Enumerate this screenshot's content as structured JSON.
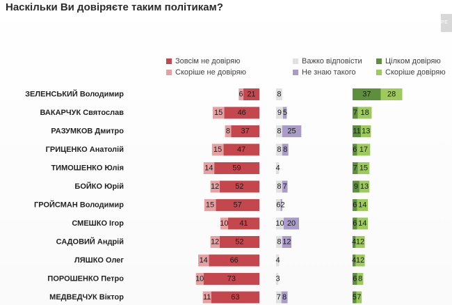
{
  "header": {
    "title": "Наскільки Ви довіряєте таким політикам?",
    "logo_text": "PE"
  },
  "colors": {
    "distrust_full": "#c4474e",
    "distrust_rather": "#e5a0a2",
    "hard_to_say": "#e0e0e0",
    "unknown": "#a99cc6",
    "trust_full": "#5d8f3d",
    "trust_rather": "#9ccb5c"
  },
  "chart_data": {
    "type": "bar",
    "title": "Наскільки Ви довіряєте таким політикам?",
    "categories": [
      "ЗЕЛЕНСЬКИЙ Володимир",
      "ВАКАРЧУК Святослав",
      "РАЗУМКОВ Дмитро",
      "ГРИЦЕНКО Анатолій",
      "ТИМОШЕНКО Юлія",
      "БОЙКО Юрій",
      "ГРОЙСМАН Володимир",
      "СМЕШКО Ігор",
      "САДОВИЙ Андрій",
      "ЛЯШКО Олег",
      "ПОРОШЕНКО Петро",
      "МЕДВЕДЧУК Віктор"
    ],
    "series": [
      {
        "name": "Зовсім не довіряю",
        "color": "#c4474e",
        "values": [
          21,
          46,
          37,
          47,
          59,
          52,
          57,
          41,
          52,
          66,
          73,
          63
        ]
      },
      {
        "name": "Скоріше не довіряю",
        "color": "#e5a0a2",
        "values": [
          6,
          15,
          8,
          15,
          14,
          12,
          15,
          10,
          12,
          14,
          10,
          11
        ]
      },
      {
        "name": "Важко відповісти",
        "color": "#e0e0e0",
        "values": [
          8,
          9,
          8,
          8,
          4,
          8,
          6,
          10,
          8,
          4,
          3,
          7
        ]
      },
      {
        "name": "Не знаю такого",
        "color": "#a99cc6",
        "values": [
          0,
          5,
          25,
          8,
          0,
          7,
          2,
          20,
          12,
          0,
          0,
          8
        ]
      },
      {
        "name": "Цілком довіряю",
        "color": "#5d8f3d",
        "values": [
          37,
          7,
          11,
          6,
          7,
          9,
          6,
          6,
          4,
          4,
          6,
          5
        ]
      },
      {
        "name": "Скоріше довіряю",
        "color": "#9ccb5c",
        "values": [
          28,
          18,
          13,
          17,
          15,
          13,
          14,
          14,
          12,
          12,
          8,
          7
        ]
      }
    ],
    "legend": [
      {
        "label": "Зовсім не довіряю",
        "color": "#c4474e"
      },
      {
        "label": "Скоріше не довіряю",
        "color": "#e5a0a2"
      },
      {
        "label": "Важко відповісти",
        "color": "#e0e0e0"
      },
      {
        "label": "Не знаю такого",
        "color": "#a99cc6"
      },
      {
        "label": "Цілком довіряю",
        "color": "#5d8f3d"
      },
      {
        "label": "Скоріше довіряю",
        "color": "#9ccb5c"
      }
    ],
    "xlabel": "",
    "ylabel": "",
    "legend_position": "top"
  }
}
